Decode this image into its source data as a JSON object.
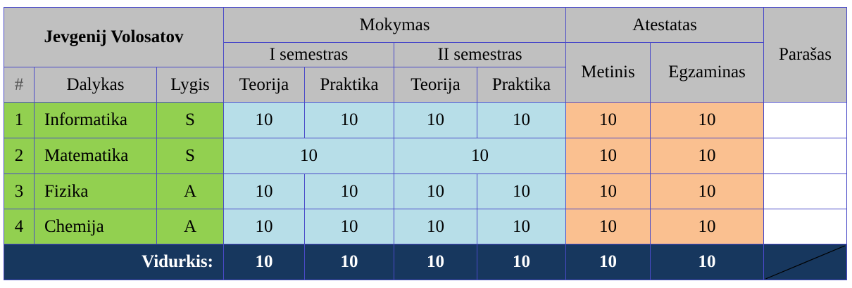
{
  "header": {
    "student_name": "Jevgenij  Volosatov",
    "mokymas": "Mokymas",
    "atestatas": "Atestatas",
    "semester1": "I semestras",
    "semester2": "II semestras",
    "metinis": "Metinis",
    "egzaminas": "Egzaminas",
    "parasas": "Parašas",
    "num": "#",
    "dalykas": "Dalykas",
    "lygis": "Lygis",
    "teorija": "Teorija",
    "praktika": "Praktika"
  },
  "rows": [
    {
      "num": "1",
      "subject": "Informatika",
      "level": "S",
      "s1_theory": "10",
      "s1_practice": "10",
      "s2_theory": "10",
      "s2_practice": "10",
      "annual": "10",
      "exam": "10"
    },
    {
      "num": "2",
      "subject": "Matematika",
      "level": "S",
      "s1": "10",
      "s2": "10",
      "annual": "10",
      "exam": "10"
    },
    {
      "num": "3",
      "subject": "Fizika",
      "level": "A",
      "s1_theory": "10",
      "s1_practice": "10",
      "s2_theory": "10",
      "s2_practice": "10",
      "annual": "10",
      "exam": "10"
    },
    {
      "num": "4",
      "subject": "Chemija",
      "level": "A",
      "s1_theory": "10",
      "s1_practice": "10",
      "s2_theory": "10",
      "s2_practice": "10",
      "annual": "10",
      "exam": "10"
    }
  ],
  "average": {
    "label": "Vidurkis:",
    "s1_theory": "10",
    "s1_practice": "10",
    "s2_theory": "10",
    "s2_practice": "10",
    "annual": "10",
    "exam": "10"
  },
  "colors": {
    "header": "#c0c0c0",
    "subject": "#92d050",
    "grades": "#b7dee8",
    "attestation": "#fac090",
    "footer": "#17375e"
  }
}
